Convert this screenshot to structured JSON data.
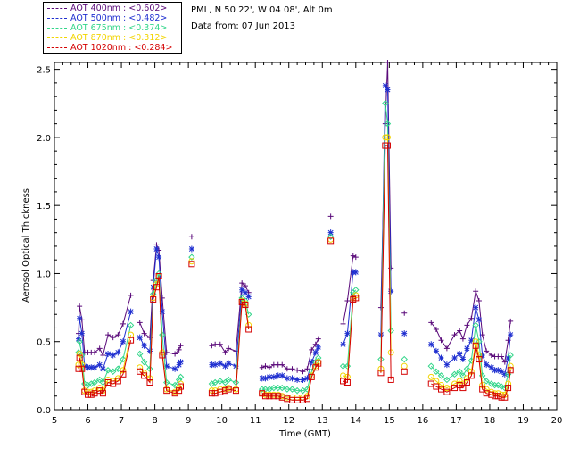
{
  "legend": [
    {
      "label": "AOT  400nm : <0.602>",
      "color": "#5a0a7a"
    },
    {
      "label": "AOT  500nm : <0.482>",
      "color": "#1f2fd0"
    },
    {
      "label": "AOT  675nm : <0.374>",
      "color": "#33d68a"
    },
    {
      "label": "AOT  870nm : <0.312>",
      "color": "#f2d400"
    },
    {
      "label": "AOT 1020nm : <0.284>",
      "color": "#d40000"
    }
  ],
  "info": {
    "line1": "PML, N 50 22', W 04 08', Alt 0m",
    "line2": "Data from: 07 Jun 2013"
  },
  "chart_data": {
    "type": "line",
    "xlabel": "Time (GMT)",
    "ylabel": "Aerosol Optical Thickness",
    "xlim": [
      5,
      20
    ],
    "ylim": [
      0,
      2.55
    ],
    "xticks": [
      5,
      6,
      7,
      8,
      9,
      10,
      11,
      12,
      13,
      14,
      15,
      16,
      17,
      18,
      19,
      20
    ],
    "yticks": [
      0.0,
      0.5,
      1.0,
      1.5,
      2.0,
      2.5
    ],
    "ytick_labels": [
      "0.0",
      "0.5",
      "1.0",
      "1.5",
      "2.0",
      "2.5"
    ],
    "x": [
      5.72,
      5.75,
      5.82,
      5.9,
      6.0,
      6.1,
      6.2,
      6.35,
      6.45,
      6.6,
      6.75,
      6.9,
      7.05,
      7.28,
      7.55,
      7.68,
      7.85,
      7.95,
      8.05,
      8.12,
      8.22,
      8.35,
      8.6,
      8.72,
      8.77,
      9.1,
      9.7,
      9.8,
      9.95,
      10.1,
      10.2,
      10.42,
      10.6,
      10.7,
      10.8,
      11.2,
      11.3,
      11.42,
      11.55,
      11.68,
      11.8,
      11.95,
      12.1,
      12.25,
      12.42,
      12.55,
      12.68,
      12.8,
      12.88,
      13.25,
      13.62,
      13.75,
      13.92,
      14.0,
      14.75,
      14.88,
      14.95,
      15.05,
      15.45,
      16.25,
      16.4,
      16.55,
      16.72,
      16.95,
      17.1,
      17.2,
      17.32,
      17.45,
      17.58,
      17.68,
      17.78,
      17.9,
      18.05,
      18.15,
      18.25,
      18.35,
      18.45,
      18.55,
      18.62
    ],
    "series": [
      {
        "name": "AOT 400nm",
        "color": "#5a0a7a",
        "marker": "plus",
        "values": [
          0.56,
          0.76,
          0.66,
          0.42,
          0.42,
          0.42,
          0.42,
          0.45,
          0.4,
          0.55,
          0.53,
          0.55,
          0.63,
          0.84,
          0.64,
          0.56,
          0.53,
          0.95,
          1.21,
          1.17,
          0.82,
          0.42,
          0.41,
          0.44,
          0.47,
          1.27,
          0.47,
          0.48,
          0.48,
          0.42,
          0.45,
          0.43,
          0.93,
          0.91,
          0.86,
          0.31,
          0.32,
          0.31,
          0.33,
          0.33,
          0.33,
          0.3,
          0.3,
          0.29,
          0.28,
          0.3,
          0.44,
          0.48,
          0.52,
          1.42,
          0.63,
          0.8,
          1.13,
          1.12,
          0.75,
          2.1,
          2.55,
          1.04,
          0.71,
          0.64,
          0.59,
          0.51,
          0.45,
          0.55,
          0.58,
          0.52,
          0.62,
          0.67,
          0.87,
          0.8,
          0.55,
          0.43,
          0.4,
          0.39,
          0.39,
          0.39,
          0.35,
          0.51,
          0.65
        ]
      },
      {
        "name": "AOT 500nm",
        "color": "#1f2fd0",
        "marker": "star",
        "values": [
          0.52,
          0.67,
          0.56,
          0.32,
          0.31,
          0.31,
          0.31,
          0.33,
          0.3,
          0.41,
          0.4,
          0.42,
          0.5,
          0.72,
          0.53,
          0.47,
          0.43,
          0.9,
          1.18,
          1.12,
          0.72,
          0.32,
          0.3,
          0.33,
          0.35,
          1.18,
          0.33,
          0.33,
          0.34,
          0.32,
          0.34,
          0.32,
          0.88,
          0.86,
          0.83,
          0.23,
          0.23,
          0.24,
          0.24,
          0.25,
          0.25,
          0.23,
          0.23,
          0.22,
          0.22,
          0.23,
          0.35,
          0.42,
          0.46,
          1.3,
          0.48,
          0.56,
          1.01,
          1.01,
          0.55,
          2.38,
          2.35,
          0.87,
          0.56,
          0.48,
          0.43,
          0.38,
          0.33,
          0.38,
          0.41,
          0.37,
          0.45,
          0.51,
          0.75,
          0.66,
          0.4,
          0.33,
          0.31,
          0.29,
          0.29,
          0.28,
          0.26,
          0.38,
          0.55
        ]
      },
      {
        "name": "AOT 675nm",
        "color": "#33d68a",
        "marker": "diamond",
        "values": [
          0.42,
          0.5,
          0.4,
          0.19,
          0.18,
          0.19,
          0.2,
          0.22,
          0.2,
          0.29,
          0.28,
          0.3,
          0.37,
          0.62,
          0.41,
          0.35,
          0.3,
          0.85,
          0.95,
          1.0,
          0.55,
          0.2,
          0.18,
          0.22,
          0.24,
          1.12,
          0.19,
          0.2,
          0.21,
          0.2,
          0.22,
          0.2,
          0.82,
          0.8,
          0.7,
          0.15,
          0.15,
          0.15,
          0.16,
          0.16,
          0.16,
          0.15,
          0.15,
          0.14,
          0.14,
          0.15,
          0.28,
          0.35,
          0.38,
          1.27,
          0.32,
          0.32,
          0.86,
          0.88,
          0.37,
          2.25,
          2.1,
          0.58,
          0.37,
          0.32,
          0.28,
          0.25,
          0.22,
          0.26,
          0.28,
          0.25,
          0.3,
          0.36,
          0.62,
          0.5,
          0.25,
          0.21,
          0.19,
          0.18,
          0.18,
          0.17,
          0.16,
          0.26,
          0.4
        ]
      },
      {
        "name": "AOT 870nm",
        "color": "#f2d400",
        "marker": "circle",
        "values": [
          0.33,
          0.41,
          0.33,
          0.14,
          0.13,
          0.13,
          0.14,
          0.16,
          0.14,
          0.22,
          0.21,
          0.23,
          0.29,
          0.55,
          0.31,
          0.27,
          0.23,
          0.82,
          0.92,
          0.98,
          0.42,
          0.15,
          0.13,
          0.16,
          0.19,
          1.09,
          0.14,
          0.14,
          0.15,
          0.15,
          0.16,
          0.15,
          0.8,
          0.78,
          0.62,
          0.12,
          0.11,
          0.11,
          0.11,
          0.11,
          0.1,
          0.09,
          0.09,
          0.09,
          0.09,
          0.1,
          0.25,
          0.32,
          0.35,
          1.25,
          0.25,
          0.24,
          0.82,
          0.84,
          0.3,
          2.0,
          2.0,
          0.42,
          0.32,
          0.24,
          0.21,
          0.18,
          0.16,
          0.19,
          0.21,
          0.19,
          0.23,
          0.28,
          0.5,
          0.4,
          0.18,
          0.15,
          0.13,
          0.12,
          0.12,
          0.11,
          0.11,
          0.19,
          0.32
        ]
      },
      {
        "name": "AOT 1020nm",
        "color": "#d40000",
        "marker": "square",
        "values": [
          0.3,
          0.38,
          0.3,
          0.13,
          0.11,
          0.11,
          0.12,
          0.14,
          0.12,
          0.2,
          0.19,
          0.21,
          0.26,
          0.51,
          0.28,
          0.25,
          0.2,
          0.81,
          0.9,
          0.98,
          0.4,
          0.14,
          0.12,
          0.14,
          0.17,
          1.07,
          0.12,
          0.12,
          0.13,
          0.14,
          0.15,
          0.14,
          0.79,
          0.77,
          0.59,
          0.12,
          0.1,
          0.1,
          0.1,
          0.1,
          0.09,
          0.08,
          0.07,
          0.07,
          0.07,
          0.08,
          0.24,
          0.31,
          0.34,
          1.24,
          0.21,
          0.2,
          0.81,
          0.82,
          0.27,
          1.94,
          1.94,
          0.22,
          0.28,
          0.19,
          0.17,
          0.15,
          0.13,
          0.16,
          0.18,
          0.16,
          0.2,
          0.25,
          0.47,
          0.37,
          0.15,
          0.12,
          0.11,
          0.1,
          0.1,
          0.09,
          0.09,
          0.16,
          0.29
        ]
      }
    ]
  }
}
